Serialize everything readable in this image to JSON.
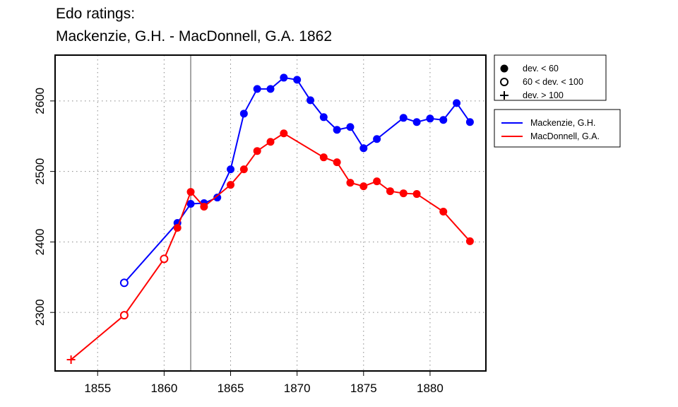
{
  "chart_data": {
    "type": "line",
    "title": [
      "Edo ratings:",
      "Mackenzie, G.H. - MacDonnell, G.A. 1862"
    ],
    "xlabel": "",
    "ylabel": "",
    "xlim": [
      1851.8,
      1884.2
    ],
    "ylim": [
      2217,
      2665
    ],
    "xticks": [
      1855,
      1860,
      1865,
      1870,
      1875,
      1880
    ],
    "yticks": [
      2300,
      2400,
      2500,
      2600
    ],
    "grid": true,
    "vline": 1862,
    "legend_markers": {
      "position": "top-right outside",
      "items": [
        {
          "symbol": "filled",
          "label": "dev. < 60"
        },
        {
          "symbol": "open",
          "label": "60 < dev. < 100"
        },
        {
          "symbol": "plus",
          "label": "dev. > 100"
        }
      ]
    },
    "series": [
      {
        "name": "Mackenzie, G.H.",
        "color": "#0000ff",
        "points": [
          [
            1857,
            2342,
            "open"
          ],
          [
            1861,
            2427,
            "filled"
          ],
          [
            1862,
            2454,
            "filled"
          ],
          [
            1863,
            2455,
            "filled"
          ],
          [
            1864,
            2463,
            "filled"
          ],
          [
            1865,
            2503,
            "filled"
          ],
          [
            1866,
            2582,
            "filled"
          ],
          [
            1867,
            2617,
            "filled"
          ],
          [
            1868,
            2617,
            "filled"
          ],
          [
            1869,
            2633,
            "filled"
          ],
          [
            1870,
            2630,
            "filled"
          ],
          [
            1871,
            2601,
            "filled"
          ],
          [
            1872,
            2577,
            "filled"
          ],
          [
            1873,
            2559,
            "filled"
          ],
          [
            1874,
            2563,
            "filled"
          ],
          [
            1875,
            2533,
            "filled"
          ],
          [
            1876,
            2546,
            "filled"
          ],
          [
            1878,
            2576,
            "filled"
          ],
          [
            1879,
            2570,
            "filled"
          ],
          [
            1880,
            2575,
            "filled"
          ],
          [
            1881,
            2573,
            "filled"
          ],
          [
            1882,
            2597,
            "filled"
          ],
          [
            1883,
            2570,
            "filled"
          ]
        ]
      },
      {
        "name": "MacDonnell, G.A.",
        "color": "#ff0000",
        "points": [
          [
            1853,
            2233,
            "plus"
          ],
          [
            1857,
            2296,
            "open"
          ],
          [
            1860,
            2376,
            "open"
          ],
          [
            1861,
            2420,
            "filled"
          ],
          [
            1862,
            2471,
            "filled"
          ],
          [
            1863,
            2450,
            "filled"
          ],
          [
            1865,
            2481,
            "filled"
          ],
          [
            1866,
            2503,
            "filled"
          ],
          [
            1867,
            2529,
            "filled"
          ],
          [
            1868,
            2542,
            "filled"
          ],
          [
            1869,
            2554,
            "filled"
          ],
          [
            1872,
            2520,
            "filled"
          ],
          [
            1873,
            2513,
            "filled"
          ],
          [
            1874,
            2484,
            "filled"
          ],
          [
            1875,
            2479,
            "filled"
          ],
          [
            1876,
            2486,
            "filled"
          ],
          [
            1877,
            2472,
            "filled"
          ],
          [
            1878,
            2469,
            "filled"
          ],
          [
            1879,
            2468,
            "filled"
          ],
          [
            1881,
            2443,
            "filled"
          ],
          [
            1883,
            2401,
            "filled"
          ]
        ]
      }
    ]
  }
}
